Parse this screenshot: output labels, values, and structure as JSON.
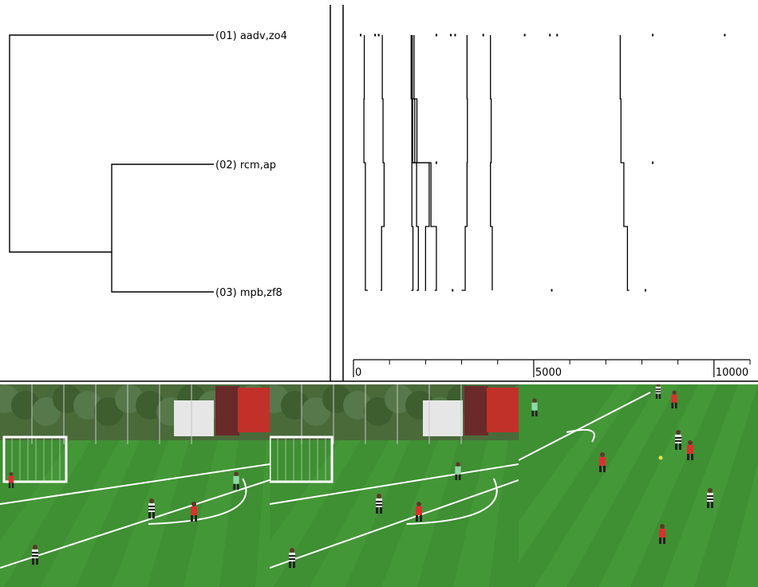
{
  "dendrogram": {
    "leaves": [
      {
        "label": "(01) aadv,zo4"
      },
      {
        "label": "(02) rcm,ap"
      },
      {
        "label": "(03) mpb,zf8"
      }
    ],
    "merges": [
      {
        "children": [
          1,
          2
        ],
        "level": 0.5
      },
      {
        "children": [
          0,
          "m0"
        ],
        "level": 1.0
      }
    ]
  },
  "timeline": {
    "axis_min": 0,
    "axis_max": 11000,
    "tick_labels": [
      {
        "value": 0,
        "label": "0"
      },
      {
        "value": 5000,
        "label": "5000"
      },
      {
        "value": 10000,
        "label": "10000"
      }
    ],
    "minor_ticks": [
      1000,
      2000,
      3000,
      4000,
      6000,
      7000,
      8000,
      9000,
      11000
    ],
    "rows": 5,
    "tracks": [
      {
        "xs": [
          300,
          290,
          330,
          330,
          400
        ]
      },
      {
        "xs": [
          800,
          820,
          850,
          780,
          750
        ]
      },
      {
        "xs": [
          1600,
          1700,
          1620,
          1650,
          1600
        ]
      },
      {
        "xs": [
          1680,
          1760,
          1750,
          1800,
          1750
        ]
      },
      {
        "xs": [
          1620,
          1620,
          2100,
          2000,
          1980
        ]
      },
      {
        "xs": [
          1630,
          1640,
          2150,
          2300,
          2250
        ]
      },
      {
        "xs": [
          3150,
          3160,
          3150,
          3100,
          3000
        ]
      },
      {
        "xs": [
          3800,
          3820,
          3800,
          3850,
          3850
        ]
      },
      {
        "xs": [
          7400,
          7420,
          7500,
          7600,
          7650
        ]
      }
    ],
    "dots": [
      {
        "x": 200,
        "row": 0
      },
      {
        "x": 600,
        "row": 0
      },
      {
        "x": 700,
        "row": 0
      },
      {
        "x": 2300,
        "row": 0
      },
      {
        "x": 2700,
        "row": 0
      },
      {
        "x": 2820,
        "row": 0
      },
      {
        "x": 3600,
        "row": 0
      },
      {
        "x": 4750,
        "row": 0
      },
      {
        "x": 5450,
        "row": 0
      },
      {
        "x": 5650,
        "row": 0
      },
      {
        "x": 8300,
        "row": 0
      },
      {
        "x": 10300,
        "row": 0
      },
      {
        "x": 2300,
        "row": 2
      },
      {
        "x": 8300,
        "row": 2
      },
      {
        "x": 2750,
        "row": 4
      },
      {
        "x": 5500,
        "row": 4
      },
      {
        "x": 8100,
        "row": 4
      }
    ]
  },
  "frames": [
    {
      "scene": "goal-wide"
    },
    {
      "scene": "goal-wide-2"
    },
    {
      "scene": "midfield"
    }
  ],
  "colors": {
    "pitch": "#3f8f33",
    "pitch_stripe": "#4aa03c",
    "trees": "#4a6a3a",
    "sky": "#cfd8cf",
    "home_kit": "#d8322e",
    "away_kit": "#e8e8e8",
    "keeper_kit": "#8fd9a8"
  }
}
